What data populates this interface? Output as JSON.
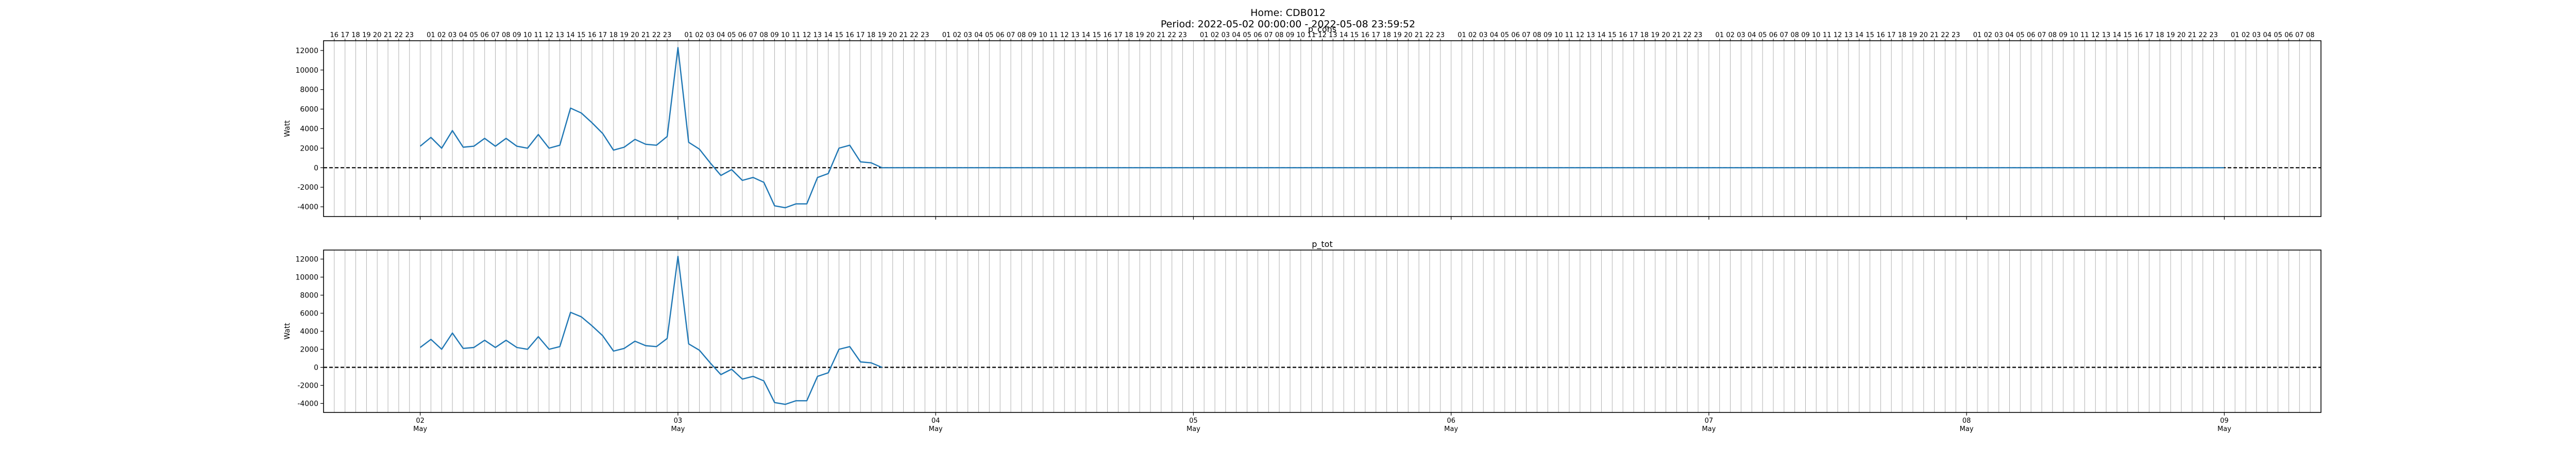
{
  "header": {
    "line1": "Home: CDB012",
    "line2": "Period: 2022-05-02 00:00:00 - 2022-05-08 23:59:52"
  },
  "colors": {
    "series": "#1f77b4",
    "grid": "#b0b0b0",
    "zero_line": "#000000"
  },
  "chart_data": [
    {
      "type": "line",
      "title": "p_cons",
      "ylabel": "Watt",
      "xlabel": "",
      "ylim": [
        -5000,
        13000
      ],
      "yticks": [
        -4000,
        -2000,
        0,
        2000,
        4000,
        6000,
        8000,
        10000,
        12000
      ],
      "xlim": [
        "2022-05-01T15:00",
        "2022-05-09T09:00"
      ],
      "grid": "vertical hourly lines",
      "top_axis_hour_labels": true,
      "bottom_axis_labels": false,
      "zero_line": {
        "y": 0,
        "style": "dashed"
      },
      "series": [
        {
          "values": [
            [
              "2022-05-02T00:00",
              2200
            ],
            [
              "2022-05-02T01:00",
              3100
            ],
            [
              "2022-05-02T02:00",
              2000
            ],
            [
              "2022-05-02T03:00",
              3800
            ],
            [
              "2022-05-02T04:00",
              2100
            ],
            [
              "2022-05-02T05:00",
              2200
            ],
            [
              "2022-05-02T06:00",
              3000
            ],
            [
              "2022-05-02T07:00",
              2200
            ],
            [
              "2022-05-02T08:00",
              3000
            ],
            [
              "2022-05-02T09:00",
              2200
            ],
            [
              "2022-05-02T10:00",
              2000
            ],
            [
              "2022-05-02T11:00",
              3400
            ],
            [
              "2022-05-02T12:00",
              2000
            ],
            [
              "2022-05-02T13:00",
              2300
            ],
            [
              "2022-05-02T14:00",
              6100
            ],
            [
              "2022-05-02T15:00",
              5600
            ],
            [
              "2022-05-02T16:00",
              4600
            ],
            [
              "2022-05-02T17:00",
              3500
            ],
            [
              "2022-05-02T18:00",
              1800
            ],
            [
              "2022-05-02T19:00",
              2100
            ],
            [
              "2022-05-02T20:00",
              2900
            ],
            [
              "2022-05-02T21:00",
              2400
            ],
            [
              "2022-05-02T22:00",
              2300
            ],
            [
              "2022-05-02T23:00",
              3200
            ],
            [
              "2022-05-03T00:00",
              12300
            ],
            [
              "2022-05-03T01:00",
              2600
            ],
            [
              "2022-05-03T02:00",
              1900
            ],
            [
              "2022-05-03T03:00",
              500
            ],
            [
              "2022-05-03T04:00",
              -800
            ],
            [
              "2022-05-03T05:00",
              -200
            ],
            [
              "2022-05-03T06:00",
              -1300
            ],
            [
              "2022-05-03T07:00",
              -1000
            ],
            [
              "2022-05-03T08:00",
              -1500
            ],
            [
              "2022-05-03T09:00",
              -3900
            ],
            [
              "2022-05-03T10:00",
              -4100
            ],
            [
              "2022-05-03T11:00",
              -3700
            ],
            [
              "2022-05-03T12:00",
              -3700
            ],
            [
              "2022-05-03T13:00",
              -1000
            ],
            [
              "2022-05-03T14:00",
              -600
            ],
            [
              "2022-05-03T15:00",
              2000
            ],
            [
              "2022-05-03T16:00",
              2300
            ],
            [
              "2022-05-03T17:00",
              600
            ],
            [
              "2022-05-03T18:00",
              500
            ],
            [
              "2022-05-03T19:00",
              0
            ],
            [
              "2022-05-03T20:00",
              0
            ],
            [
              "2022-05-08T23:59",
              0
            ]
          ]
        }
      ]
    },
    {
      "type": "line",
      "title": "p_tot",
      "ylabel": "Watt",
      "xlabel": "",
      "ylim": [
        -5000,
        13000
      ],
      "yticks": [
        -4000,
        -2000,
        0,
        2000,
        4000,
        6000,
        8000,
        10000,
        12000
      ],
      "xlim": [
        "2022-05-01T15:00",
        "2022-05-09T09:00"
      ],
      "grid": "vertical hourly lines",
      "top_axis_hour_labels": false,
      "bottom_axis_labels": true,
      "zero_line": {
        "y": 0,
        "style": "dashed"
      },
      "series": [
        {
          "values": [
            [
              "2022-05-02T00:00",
              2200
            ],
            [
              "2022-05-02T01:00",
              3100
            ],
            [
              "2022-05-02T02:00",
              2000
            ],
            [
              "2022-05-02T03:00",
              3800
            ],
            [
              "2022-05-02T04:00",
              2100
            ],
            [
              "2022-05-02T05:00",
              2200
            ],
            [
              "2022-05-02T06:00",
              3000
            ],
            [
              "2022-05-02T07:00",
              2200
            ],
            [
              "2022-05-02T08:00",
              3000
            ],
            [
              "2022-05-02T09:00",
              2200
            ],
            [
              "2022-05-02T10:00",
              2000
            ],
            [
              "2022-05-02T11:00",
              3400
            ],
            [
              "2022-05-02T12:00",
              2000
            ],
            [
              "2022-05-02T13:00",
              2300
            ],
            [
              "2022-05-02T14:00",
              6100
            ],
            [
              "2022-05-02T15:00",
              5600
            ],
            [
              "2022-05-02T16:00",
              4600
            ],
            [
              "2022-05-02T17:00",
              3500
            ],
            [
              "2022-05-02T18:00",
              1800
            ],
            [
              "2022-05-02T19:00",
              2100
            ],
            [
              "2022-05-02T20:00",
              2900
            ],
            [
              "2022-05-02T21:00",
              2400
            ],
            [
              "2022-05-02T22:00",
              2300
            ],
            [
              "2022-05-02T23:00",
              3200
            ],
            [
              "2022-05-03T00:00",
              12300
            ],
            [
              "2022-05-03T01:00",
              2600
            ],
            [
              "2022-05-03T02:00",
              1900
            ],
            [
              "2022-05-03T03:00",
              500
            ],
            [
              "2022-05-03T04:00",
              -800
            ],
            [
              "2022-05-03T05:00",
              -200
            ],
            [
              "2022-05-03T06:00",
              -1300
            ],
            [
              "2022-05-03T07:00",
              -1000
            ],
            [
              "2022-05-03T08:00",
              -1500
            ],
            [
              "2022-05-03T09:00",
              -3900
            ],
            [
              "2022-05-03T10:00",
              -4100
            ],
            [
              "2022-05-03T11:00",
              -3700
            ],
            [
              "2022-05-03T12:00",
              -3700
            ],
            [
              "2022-05-03T13:00",
              -1000
            ],
            [
              "2022-05-03T14:00",
              -600
            ],
            [
              "2022-05-03T15:00",
              2000
            ],
            [
              "2022-05-03T16:00",
              2300
            ],
            [
              "2022-05-03T17:00",
              600
            ],
            [
              "2022-05-03T18:00",
              500
            ],
            [
              "2022-05-03T19:00",
              0
            ]
          ]
        }
      ]
    }
  ],
  "hour_ticks": {
    "labels": [
      "01",
      "02",
      "03",
      "04",
      "05",
      "06",
      "07",
      "08",
      "09",
      "10",
      "11",
      "12",
      "13",
      "14",
      "15",
      "16",
      "17",
      "18",
      "19",
      "20",
      "21",
      "22",
      "23"
    ],
    "first_day_labels": [
      "16",
      "17",
      "18",
      "19",
      "20",
      "21",
      "22",
      "23"
    ],
    "last_day_labels": [
      "01",
      "02",
      "03",
      "04",
      "05",
      "06",
      "07",
      "08"
    ]
  },
  "day_ticks": [
    {
      "day": "02",
      "month": "May"
    },
    {
      "day": "03",
      "month": "May"
    },
    {
      "day": "04",
      "month": "May"
    },
    {
      "day": "05",
      "month": "May"
    },
    {
      "day": "06",
      "month": "May"
    },
    {
      "day": "07",
      "month": "May"
    },
    {
      "day": "08",
      "month": "May"
    },
    {
      "day": "09",
      "month": "May"
    }
  ]
}
